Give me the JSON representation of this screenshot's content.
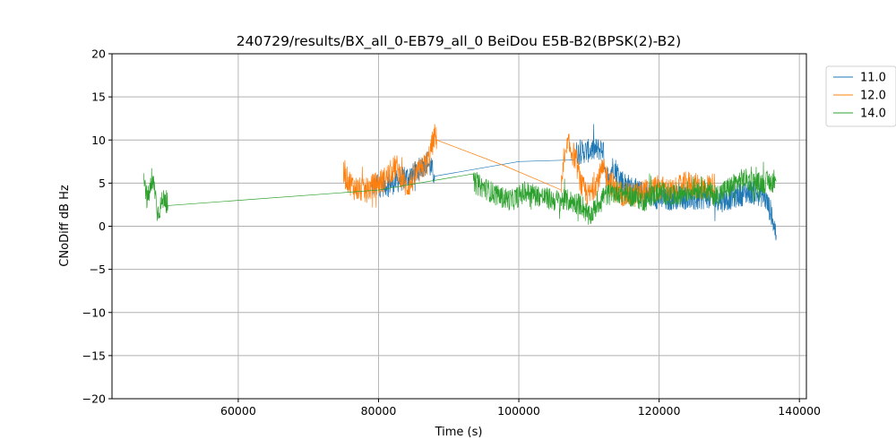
{
  "chart_data": {
    "type": "line",
    "title": "240729/results/BX_all_0-EB79_all_0 BeiDou E5B-B2(BPSK(2)-B2)",
    "xlabel": "Time (s)",
    "ylabel": "CNoDiff dB Hz",
    "xlim": [
      42000,
      141000
    ],
    "ylim": [
      -20,
      20
    ],
    "xticks": [
      60000,
      80000,
      100000,
      120000,
      140000
    ],
    "yticks": [
      -20,
      -15,
      -10,
      -5,
      0,
      5,
      10,
      15,
      20
    ],
    "grid": true,
    "legend": "top-right-outside",
    "series": [
      {
        "name": "11.0",
        "color": "#1f77b4",
        "x": [
          79000,
          82000,
          85000,
          87000,
          88000,
          100000,
          108000,
          112000,
          112500,
          113500,
          115000,
          117000,
          119000,
          121000,
          123000,
          125000,
          127000,
          129000,
          131000,
          133000,
          135000,
          136000,
          136700
        ],
        "y": [
          4.5,
          5.0,
          6.0,
          7.5,
          5.8,
          7.5,
          8.5,
          9.0,
          5.5,
          7.0,
          5.0,
          4.0,
          3.5,
          3.0,
          3.5,
          3.0,
          3.5,
          3.0,
          3.5,
          4.0,
          3.5,
          1.5,
          -1.0
        ],
        "noise": 1.4
      },
      {
        "name": "12.0",
        "color": "#ff7f0e",
        "x": [
          75000,
          76500,
          78000,
          79500,
          81000,
          82500,
          84000,
          85500,
          87000,
          88000,
          88300,
          98000,
          106000,
          107000,
          108000,
          109000,
          110000,
          112000,
          114000,
          116000,
          118000,
          120000,
          122000,
          124000,
          126000,
          128000
        ],
        "y": [
          6.0,
          4.5,
          4.0,
          4.8,
          5.5,
          7.0,
          4.5,
          6.0,
          7.5,
          10.5,
          10.0,
          7.0,
          5.0,
          9.5,
          8.0,
          4.5,
          3.5,
          6.5,
          4.0,
          3.5,
          4.0,
          4.5,
          4.0,
          5.0,
          4.5,
          4.8
        ],
        "noise": 1.5
      },
      {
        "name": "14.0",
        "color": "#2ca02c",
        "x": [
          46500,
          47000,
          47500,
          48000,
          48500,
          49000,
          49500,
          50000,
          80000,
          93500,
          95000,
          97000,
          99000,
          101000,
          103000,
          105000,
          107000,
          109000,
          110000,
          112000,
          114000,
          116000,
          118000,
          120000,
          122000,
          124000,
          126000,
          128000,
          130000,
          132000,
          134000,
          136700
        ],
        "y": [
          6.5,
          3.0,
          4.5,
          5.0,
          1.5,
          2.5,
          3.5,
          2.4,
          4.2,
          5.0,
          4.5,
          3.5,
          3.0,
          4.0,
          3.5,
          3.0,
          3.0,
          2.5,
          1.0,
          3.5,
          4.0,
          3.5,
          3.0,
          4.0,
          3.5,
          4.0,
          4.5,
          3.5,
          4.5,
          5.5,
          5.0,
          5.2
        ],
        "noise": 1.3
      }
    ]
  }
}
